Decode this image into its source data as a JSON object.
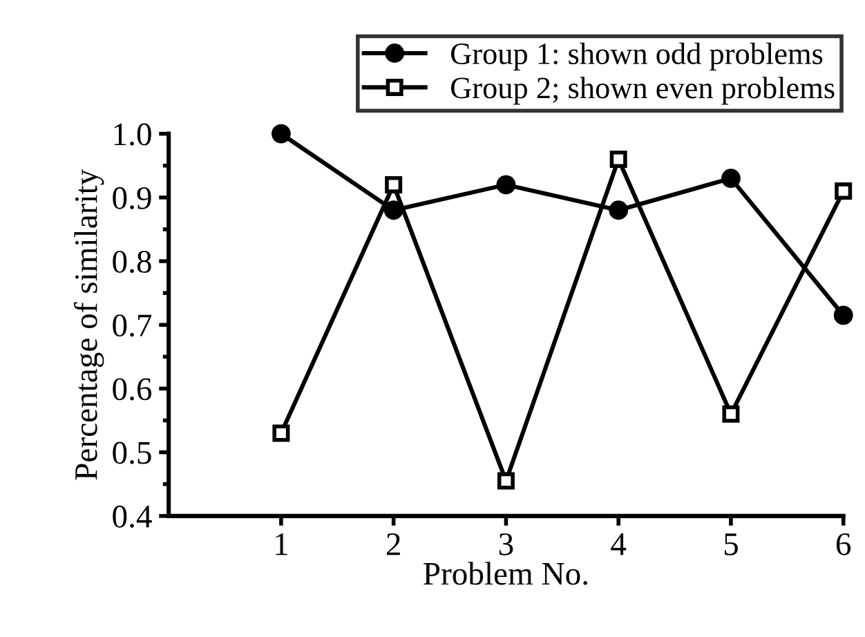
{
  "chart_data": {
    "type": "line",
    "xlabel": "Problem No.",
    "ylabel": "Percentage of similarity",
    "x": [
      1,
      2,
      3,
      4,
      5,
      6
    ],
    "series": [
      {
        "name": "Group 1: shown odd problems",
        "color": "#000000",
        "marker": "circle",
        "values": [
          1.0,
          0.88,
          0.92,
          0.88,
          0.93,
          0.715
        ]
      },
      {
        "name": "Group 2; shown even problems",
        "color": "#000000",
        "marker": "square",
        "values": [
          0.53,
          0.92,
          0.455,
          0.96,
          0.56,
          0.91
        ]
      }
    ],
    "xlim": [
      0,
      6
    ],
    "xticks": [
      1,
      2,
      3,
      4,
      5,
      6
    ],
    "ylim": [
      0.4,
      1.0
    ],
    "yticks": [
      {
        "value": 0.4,
        "label": "0.4"
      },
      {
        "value": 0.45,
        "label": null
      },
      {
        "value": 0.5,
        "label": "0.5"
      },
      {
        "value": 0.55,
        "label": null
      },
      {
        "value": 0.6,
        "label": "0.6"
      },
      {
        "value": 0.65,
        "label": null
      },
      {
        "value": 0.7,
        "label": "0.7"
      },
      {
        "value": 0.75,
        "label": null
      },
      {
        "value": 0.8,
        "label": "0.8"
      },
      {
        "value": 0.85,
        "label": null
      },
      {
        "value": 0.9,
        "label": "0.9"
      },
      {
        "value": 0.95,
        "label": null
      },
      {
        "value": 1.0,
        "label": "1.0"
      }
    ],
    "grid": false,
    "legend": "top right",
    "line_style": "solid"
  }
}
